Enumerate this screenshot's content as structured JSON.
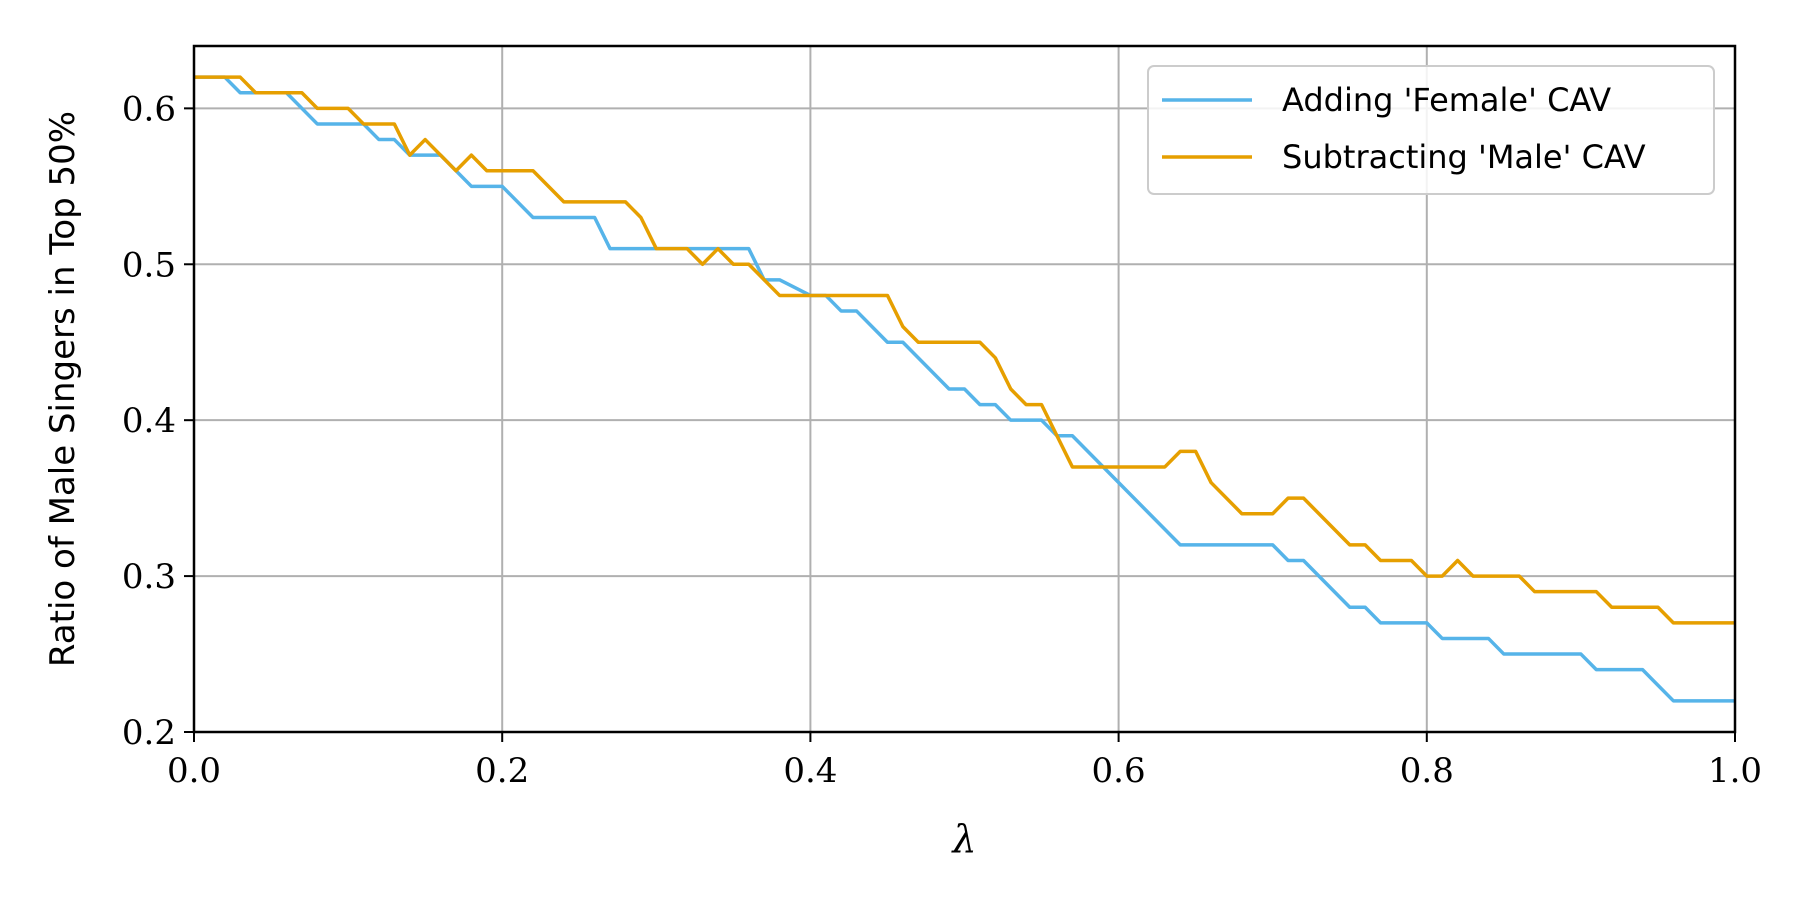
{
  "chart_data": {
    "type": "line",
    "xlabel": "λ",
    "ylabel": "Ratio of Male Singers in Top 50%",
    "xlim": [
      0.0,
      1.0
    ],
    "ylim": [
      0.2,
      0.64
    ],
    "xticks": [
      0.0,
      0.2,
      0.4,
      0.6,
      0.8,
      1.0
    ],
    "xtick_labels": [
      "0.0",
      "0.2",
      "0.4",
      "0.6",
      "0.8",
      "1.0"
    ],
    "yticks": [
      0.2,
      0.3,
      0.4,
      0.5,
      0.6
    ],
    "ytick_labels": [
      "0.2",
      "0.3",
      "0.4",
      "0.5",
      "0.6"
    ],
    "grid": true,
    "legend_position": "top-right",
    "series": [
      {
        "name": "Adding 'Female' CAV",
        "color": "#56B4E9",
        "x": [
          0.0,
          0.02,
          0.03,
          0.06,
          0.08,
          0.11,
          0.12,
          0.13,
          0.14,
          0.16,
          0.18,
          0.2,
          0.22,
          0.26,
          0.27,
          0.36,
          0.37,
          0.38,
          0.4,
          0.41,
          0.42,
          0.43,
          0.45,
          0.46,
          0.49,
          0.5,
          0.51,
          0.52,
          0.53,
          0.55,
          0.56,
          0.57,
          0.64,
          0.7,
          0.71,
          0.72,
          0.75,
          0.76,
          0.77,
          0.8,
          0.81,
          0.84,
          0.85,
          0.89,
          0.9,
          0.91,
          0.94,
          0.96,
          1.0
        ],
        "y": [
          0.62,
          0.62,
          0.61,
          0.61,
          0.59,
          0.59,
          0.58,
          0.58,
          0.57,
          0.57,
          0.55,
          0.55,
          0.53,
          0.53,
          0.51,
          0.51,
          0.49,
          0.49,
          0.48,
          0.48,
          0.47,
          0.47,
          0.45,
          0.45,
          0.42,
          0.42,
          0.41,
          0.41,
          0.4,
          0.4,
          0.39,
          0.39,
          0.32,
          0.32,
          0.31,
          0.31,
          0.28,
          0.28,
          0.27,
          0.27,
          0.26,
          0.26,
          0.25,
          0.25,
          0.25,
          0.24,
          0.24,
          0.22,
          0.22
        ]
      },
      {
        "name": "Subtracting 'Male' CAV",
        "color": "#E69F00",
        "x": [
          0.0,
          0.03,
          0.04,
          0.07,
          0.08,
          0.1,
          0.11,
          0.13,
          0.14,
          0.15,
          0.17,
          0.18,
          0.19,
          0.22,
          0.24,
          0.28,
          0.29,
          0.3,
          0.32,
          0.33,
          0.34,
          0.35,
          0.36,
          0.38,
          0.45,
          0.46,
          0.47,
          0.51,
          0.52,
          0.53,
          0.54,
          0.55,
          0.57,
          0.63,
          0.64,
          0.65,
          0.66,
          0.68,
          0.7,
          0.71,
          0.72,
          0.75,
          0.76,
          0.77,
          0.79,
          0.8,
          0.81,
          0.82,
          0.83,
          0.86,
          0.87,
          0.91,
          0.92,
          0.95,
          0.96,
          1.0
        ],
        "y": [
          0.62,
          0.62,
          0.61,
          0.61,
          0.6,
          0.6,
          0.59,
          0.59,
          0.57,
          0.58,
          0.56,
          0.57,
          0.56,
          0.56,
          0.54,
          0.54,
          0.53,
          0.51,
          0.51,
          0.5,
          0.51,
          0.5,
          0.5,
          0.48,
          0.48,
          0.46,
          0.45,
          0.45,
          0.44,
          0.42,
          0.41,
          0.41,
          0.37,
          0.37,
          0.38,
          0.38,
          0.36,
          0.34,
          0.34,
          0.35,
          0.35,
          0.32,
          0.32,
          0.31,
          0.31,
          0.3,
          0.3,
          0.31,
          0.3,
          0.3,
          0.29,
          0.29,
          0.28,
          0.28,
          0.27,
          0.27
        ]
      }
    ]
  }
}
